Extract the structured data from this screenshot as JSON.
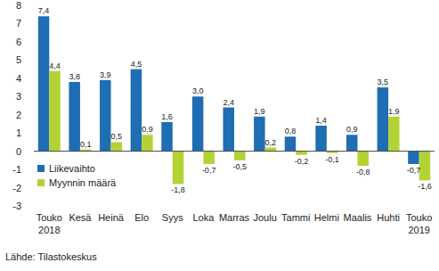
{
  "chart_data": {
    "type": "bar",
    "categories": [
      "Touko\n2018",
      "Kesä",
      "Heinä",
      "Elo",
      "Syys",
      "Loka",
      "Marras",
      "Joulu",
      "Tammi",
      "Helmi",
      "Maalis",
      "Huhti",
      "Touko\n2019"
    ],
    "series": [
      {
        "name": "Liikevaihto",
        "color": "#1f6db3",
        "values": [
          7.4,
          3.8,
          3.9,
          4.5,
          1.6,
          3.0,
          2.4,
          1.9,
          0.8,
          1.4,
          0.9,
          3.5,
          -0.7
        ],
        "value_labels": [
          "7,4",
          "3,8",
          "3,9",
          "4,5",
          "1,6",
          "3,0",
          "2,4",
          "1,9",
          "0,8",
          "1,4",
          "0,9",
          "3,5",
          "-0,7"
        ]
      },
      {
        "name": "Myynnin määrä",
        "color": "#b3d335",
        "values": [
          4.4,
          0.1,
          0.5,
          0.9,
          -1.8,
          -0.7,
          -0.5,
          0.2,
          -0.2,
          -0.1,
          -0.8,
          1.9,
          -1.6
        ],
        "value_labels": [
          "4,4",
          "0,1",
          "0,5",
          "0,9",
          "-1,8",
          "-0,7",
          "-0,5",
          "0,2",
          "-0,2",
          "-0,1",
          "-0,8",
          "1,9",
          "-1,6"
        ]
      }
    ],
    "ylim": [
      -3,
      8
    ],
    "yticks": [
      -3,
      -2,
      -1,
      0,
      1,
      2,
      3,
      4,
      5,
      6,
      7,
      8
    ],
    "grid": false,
    "legend": "lower left",
    "data_labels": true,
    "source": "Lähde: Tilastokeskus"
  }
}
